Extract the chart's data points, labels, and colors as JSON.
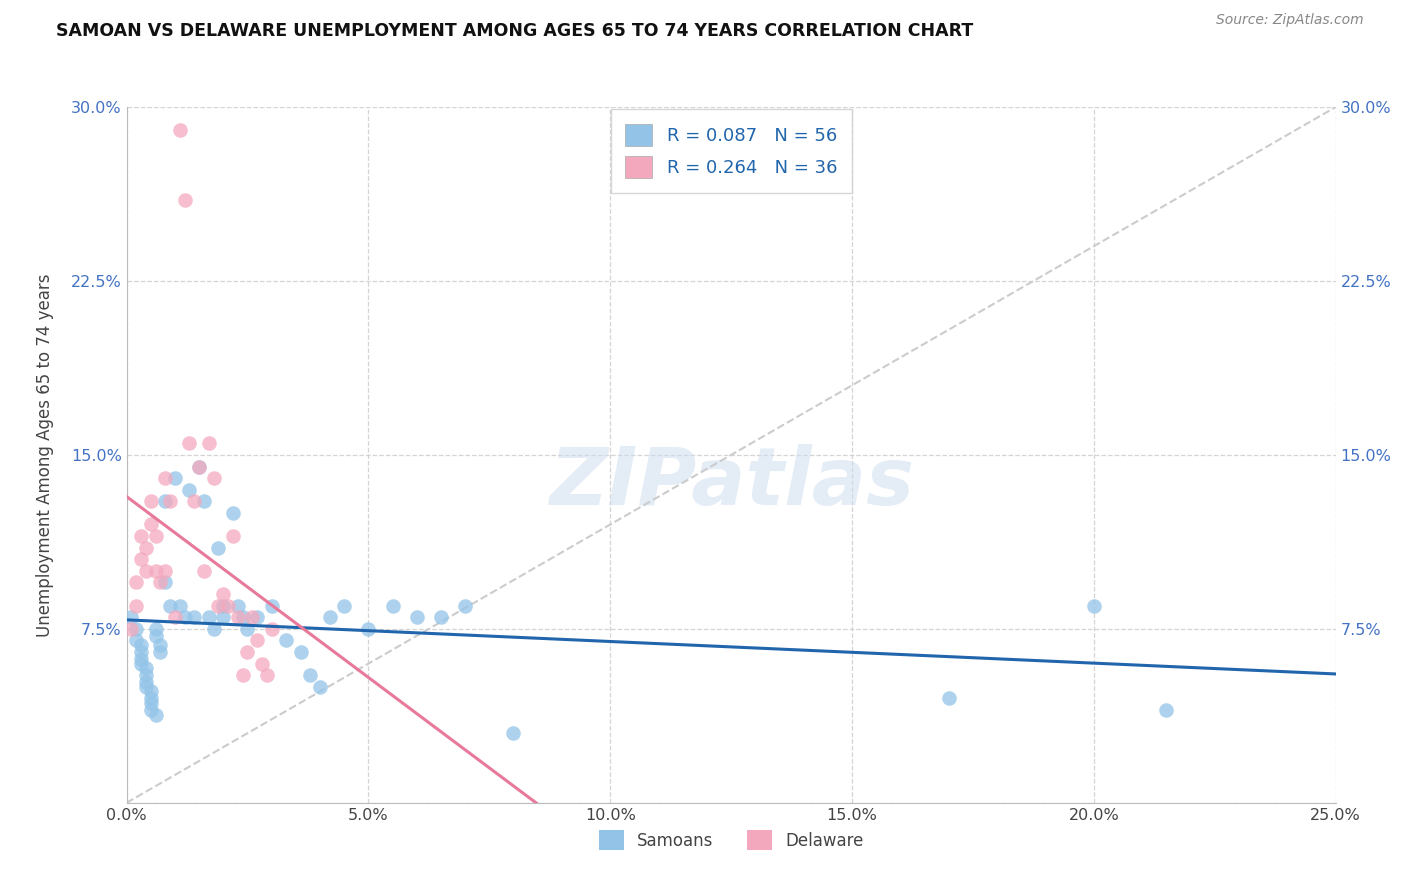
{
  "title": "SAMOAN VS DELAWARE UNEMPLOYMENT AMONG AGES 65 TO 74 YEARS CORRELATION CHART",
  "source": "Source: ZipAtlas.com",
  "ylabel": "Unemployment Among Ages 65 to 74 years",
  "xlim": [
    0.0,
    0.25
  ],
  "ylim": [
    0.0,
    0.3
  ],
  "xticks": [
    0.0,
    0.05,
    0.1,
    0.15,
    0.2,
    0.25
  ],
  "yticks": [
    0.0,
    0.075,
    0.15,
    0.225,
    0.3
  ],
  "xticklabels": [
    "0.0%",
    "5.0%",
    "10.0%",
    "15.0%",
    "20.0%",
    "25.0%"
  ],
  "yticklabels": [
    "",
    "7.5%",
    "15.0%",
    "22.5%",
    "30.0%"
  ],
  "background_color": "#ffffff",
  "grid_color": "#d0d0d0",
  "samoans_color": "#93c4e8",
  "delaware_color": "#f4a8be",
  "samoans_line_color": "#2166ac",
  "delaware_line_color": "#e8799a",
  "R_samoans": 0.087,
  "N_samoans": 56,
  "R_delaware": 0.264,
  "N_delaware": 36,
  "watermark": "ZIPatlas",
  "tick_label_color_x": "#444444",
  "tick_label_color_y": "#4472c4",
  "samoans_x": [
    0.001,
    0.002,
    0.002,
    0.003,
    0.003,
    0.003,
    0.003,
    0.004,
    0.004,
    0.004,
    0.004,
    0.005,
    0.005,
    0.005,
    0.005,
    0.006,
    0.006,
    0.006,
    0.007,
    0.007,
    0.008,
    0.008,
    0.009,
    0.01,
    0.011,
    0.012,
    0.013,
    0.014,
    0.015,
    0.016,
    0.017,
    0.018,
    0.019,
    0.02,
    0.02,
    0.022,
    0.023,
    0.024,
    0.025,
    0.027,
    0.03,
    0.033,
    0.036,
    0.038,
    0.04,
    0.042,
    0.045,
    0.05,
    0.055,
    0.06,
    0.065,
    0.07,
    0.08,
    0.17,
    0.2,
    0.215
  ],
  "samoans_y": [
    0.08,
    0.075,
    0.07,
    0.068,
    0.065,
    0.062,
    0.06,
    0.058,
    0.055,
    0.052,
    0.05,
    0.048,
    0.045,
    0.043,
    0.04,
    0.038,
    0.075,
    0.072,
    0.068,
    0.065,
    0.13,
    0.095,
    0.085,
    0.14,
    0.085,
    0.08,
    0.135,
    0.08,
    0.145,
    0.13,
    0.08,
    0.075,
    0.11,
    0.085,
    0.08,
    0.125,
    0.085,
    0.08,
    0.075,
    0.08,
    0.085,
    0.07,
    0.065,
    0.055,
    0.05,
    0.08,
    0.085,
    0.075,
    0.085,
    0.08,
    0.08,
    0.085,
    0.03,
    0.045,
    0.085,
    0.04
  ],
  "delaware_x": [
    0.001,
    0.002,
    0.002,
    0.003,
    0.003,
    0.004,
    0.004,
    0.005,
    0.005,
    0.006,
    0.006,
    0.007,
    0.008,
    0.008,
    0.009,
    0.01,
    0.011,
    0.012,
    0.013,
    0.014,
    0.015,
    0.016,
    0.017,
    0.018,
    0.019,
    0.02,
    0.021,
    0.022,
    0.023,
    0.024,
    0.025,
    0.026,
    0.027,
    0.028,
    0.029,
    0.03
  ],
  "delaware_y": [
    0.075,
    0.085,
    0.095,
    0.105,
    0.115,
    0.1,
    0.11,
    0.12,
    0.13,
    0.1,
    0.115,
    0.095,
    0.14,
    0.1,
    0.13,
    0.08,
    0.29,
    0.26,
    0.155,
    0.13,
    0.145,
    0.1,
    0.155,
    0.14,
    0.085,
    0.09,
    0.085,
    0.115,
    0.08,
    0.055,
    0.065,
    0.08,
    0.07,
    0.06,
    0.055,
    0.075
  ]
}
